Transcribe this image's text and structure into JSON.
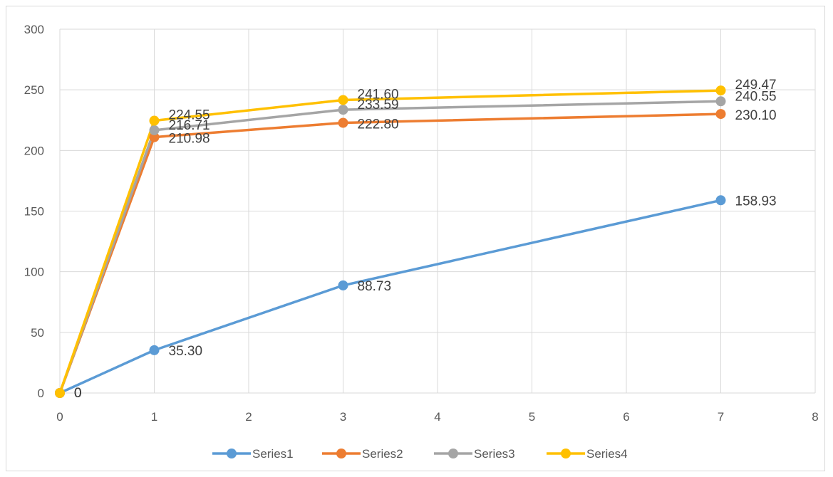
{
  "chart_data": {
    "type": "scatter",
    "subtype": "straight lines with markers",
    "title": "",
    "xlabel": "",
    "ylabel": "",
    "xlim": [
      0,
      8
    ],
    "ylim": [
      0,
      300
    ],
    "xticks": [
      0,
      1,
      2,
      3,
      4,
      5,
      6,
      7,
      8
    ],
    "yticks": [
      0,
      50,
      100,
      150,
      200,
      250,
      300
    ],
    "grid": true,
    "legend": "bottom",
    "series": [
      {
        "name": "Series1",
        "color": "#5b9bd5",
        "x": [
          0,
          1,
          3,
          7
        ],
        "y": [
          0,
          35.3,
          88.73,
          158.93
        ],
        "labels": [
          "0",
          "35.30",
          "88.73",
          "158.93"
        ]
      },
      {
        "name": "Series2",
        "color": "#ed7d31",
        "x": [
          0,
          1,
          3,
          7
        ],
        "y": [
          0,
          210.98,
          222.8,
          230.1
        ],
        "labels": [
          "0",
          "210.98",
          "222.80",
          "230.10"
        ]
      },
      {
        "name": "Series3",
        "color": "#a5a5a5",
        "x": [
          0,
          1,
          3,
          7
        ],
        "y": [
          0,
          216.71,
          233.59,
          240.55
        ],
        "labels": [
          "0",
          "216.71",
          "233.59",
          "240.55"
        ]
      },
      {
        "name": "Series4",
        "color": "#ffc000",
        "x": [
          0,
          1,
          3,
          7
        ],
        "y": [
          0,
          224.55,
          241.6,
          249.47
        ],
        "labels": [
          "0",
          "224.55",
          "241.60",
          "249.47"
        ]
      }
    ]
  }
}
